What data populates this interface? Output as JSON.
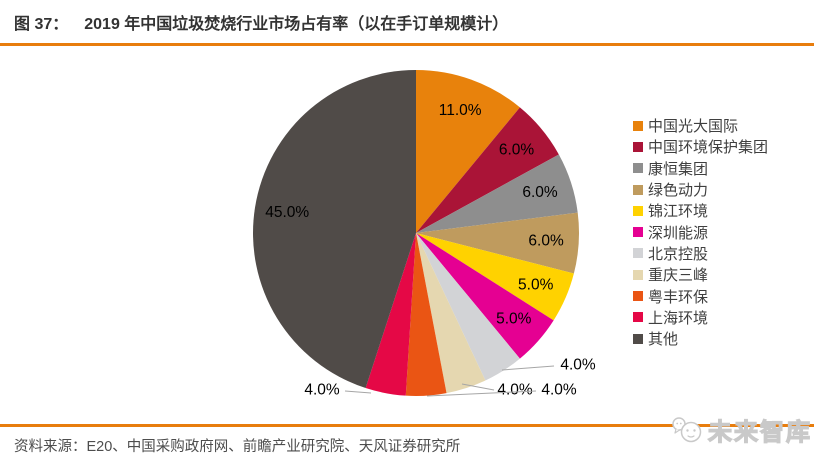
{
  "header": {
    "figure_label": "图 37：",
    "title": "2019 年中国垃圾焚烧行业市场占有率（以在手订单规模计）"
  },
  "footer": {
    "source": "资料来源：E20、中国采购政府网、前瞻产业研究院、天风证券研究所",
    "watermark": "未来智库"
  },
  "colors": {
    "accent_line": "#e87d0d",
    "title_text": "#333333",
    "source_text": "#4d4d4d",
    "legend_text": "#3f3f3f",
    "data_label_text": "#000000",
    "leader_line": "#a6a6a6",
    "watermark": "#c9c9c9"
  },
  "chart_data": {
    "type": "pie",
    "title": "2019 年中国垃圾焚烧行业市场占有率（以在手订单规模计）",
    "unit": "percent",
    "start_angle_deg": 0,
    "direction": "clockwise",
    "legend_position": "right",
    "series": [
      {
        "name": "中国光大国际",
        "value": 11.0,
        "label": "11.0%",
        "color": "#e8820c",
        "label_placement": "inside"
      },
      {
        "name": "中国环境保护集团",
        "value": 6.0,
        "label": "6.0%",
        "color": "#aa1437",
        "label_placement": "inside"
      },
      {
        "name": "康恒集团",
        "value": 6.0,
        "label": "6.0%",
        "color": "#8e8e8e",
        "label_placement": "inside"
      },
      {
        "name": "绿色动力",
        "value": 6.0,
        "label": "6.0%",
        "color": "#bf9b5e",
        "label_placement": "inside"
      },
      {
        "name": "锦江环境",
        "value": 5.0,
        "label": "5.0%",
        "color": "#ffd200",
        "label_placement": "inside"
      },
      {
        "name": "深圳能源",
        "value": 5.0,
        "label": "5.0%",
        "color": "#e50092",
        "label_placement": "inside"
      },
      {
        "name": "北京控股",
        "value": 4.0,
        "label": "4.0%",
        "color": "#d2d3d6",
        "label_placement": "outside"
      },
      {
        "name": "重庆三峰",
        "value": 4.0,
        "label": "4.0%",
        "color": "#e5d7b0",
        "label_placement": "outside"
      },
      {
        "name": "粤丰环保",
        "value": 4.0,
        "label": "4.0%",
        "color": "#ea5514",
        "label_placement": "outside"
      },
      {
        "name": "上海环境",
        "value": 4.0,
        "label": "4.0%",
        "color": "#e50846",
        "label_placement": "outside"
      },
      {
        "name": "其他",
        "value": 45.0,
        "label": "45.0%",
        "color": "#504b48",
        "label_placement": "inside"
      }
    ]
  }
}
